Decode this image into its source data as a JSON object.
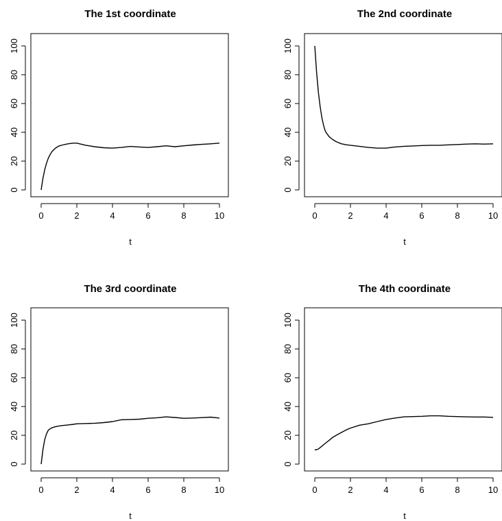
{
  "chart_data": [
    {
      "type": "line",
      "title": "The 1st coordinate",
      "xlabel": "t",
      "ylabel": "",
      "xlim": [
        0,
        10
      ],
      "ylim": [
        0,
        100
      ],
      "xticks": [
        0,
        2,
        4,
        6,
        8,
        10
      ],
      "yticks": [
        0,
        20,
        40,
        60,
        80,
        100
      ],
      "x": [
        0,
        0.1,
        0.2,
        0.3,
        0.4,
        0.5,
        0.6,
        0.8,
        1.0,
        1.2,
        1.5,
        1.8,
        2.0,
        2.5,
        3.0,
        3.5,
        4.0,
        4.5,
        5.0,
        5.5,
        6.0,
        6.5,
        7.0,
        7.5,
        8.0,
        8.5,
        9.0,
        9.5,
        10.0
      ],
      "series": [
        {
          "values": [
            0,
            8,
            14,
            18.5,
            22,
            24.5,
            26.5,
            29,
            30.5,
            31.2,
            32,
            32.5,
            32.5,
            31,
            30,
            29.3,
            29,
            29.5,
            30.2,
            29.8,
            29.5,
            30,
            30.6,
            30,
            30.6,
            31.2,
            31.6,
            32,
            32.5
          ]
        }
      ]
    },
    {
      "type": "line",
      "title": "The 2nd coordinate",
      "xlabel": "t",
      "ylabel": "",
      "xlim": [
        0,
        10
      ],
      "ylim": [
        0,
        100
      ],
      "xticks": [
        0,
        2,
        4,
        6,
        8,
        10
      ],
      "yticks": [
        0,
        20,
        40,
        60,
        80,
        100
      ],
      "x": [
        0,
        0.1,
        0.2,
        0.3,
        0.4,
        0.5,
        0.6,
        0.8,
        1.0,
        1.2,
        1.5,
        1.8,
        2.0,
        2.5,
        3.0,
        3.5,
        4.0,
        4.5,
        5.0,
        5.5,
        6.0,
        6.5,
        7.0,
        7.5,
        8.0,
        8.5,
        9.0,
        9.5,
        10.0
      ],
      "series": [
        {
          "values": [
            100,
            82,
            68,
            58,
            50,
            44.5,
            40.5,
            37,
            35,
            33.5,
            32,
            31.3,
            31,
            30.3,
            29.5,
            29,
            29,
            29.8,
            30.3,
            30.5,
            30.8,
            31,
            31,
            31.3,
            31.5,
            31.8,
            32,
            31.8,
            32
          ]
        }
      ]
    },
    {
      "type": "line",
      "title": "The 3rd coordinate",
      "xlabel": "t",
      "ylabel": "",
      "xlim": [
        0,
        10
      ],
      "ylim": [
        0,
        100
      ],
      "xticks": [
        0,
        2,
        4,
        6,
        8,
        10
      ],
      "yticks": [
        0,
        20,
        40,
        60,
        80,
        100
      ],
      "x": [
        0,
        0.1,
        0.2,
        0.3,
        0.4,
        0.5,
        0.6,
        0.8,
        1.0,
        1.2,
        1.5,
        1.8,
        2.0,
        2.5,
        3.0,
        3.5,
        4.0,
        4.5,
        5.0,
        5.5,
        6.0,
        6.5,
        7.0,
        7.5,
        8.0,
        8.5,
        9.0,
        9.5,
        10.0
      ],
      "series": [
        {
          "values": [
            0,
            10,
            17,
            21,
            23.5,
            24.5,
            25.2,
            26,
            26.5,
            26.8,
            27.2,
            27.6,
            28,
            28.2,
            28.4,
            28.8,
            29.5,
            30.8,
            31,
            31.2,
            31.8,
            32.2,
            32.8,
            32.4,
            31.8,
            32,
            32.3,
            32.6,
            32
          ]
        }
      ]
    },
    {
      "type": "line",
      "title": "The 4th coordinate",
      "xlabel": "t",
      "ylabel": "",
      "xlim": [
        0,
        10
      ],
      "ylim": [
        0,
        100
      ],
      "xticks": [
        0,
        2,
        4,
        6,
        8,
        10
      ],
      "yticks": [
        0,
        20,
        40,
        60,
        80,
        100
      ],
      "x": [
        0,
        0.1,
        0.2,
        0.3,
        0.4,
        0.5,
        0.6,
        0.8,
        1.0,
        1.2,
        1.5,
        1.8,
        2.0,
        2.5,
        3.0,
        3.5,
        4.0,
        4.5,
        5.0,
        5.5,
        6.0,
        6.5,
        7.0,
        7.5,
        8.0,
        8.5,
        9.0,
        9.5,
        10.0
      ],
      "series": [
        {
          "values": [
            10,
            10,
            10.5,
            11.5,
            12.5,
            13.5,
            14.5,
            16.5,
            18.5,
            20,
            22,
            24,
            25,
            27,
            28,
            29.5,
            31,
            32,
            32.8,
            33,
            33.2,
            33.5,
            33.5,
            33.2,
            33,
            32.8,
            32.7,
            32.7,
            32.5
          ]
        }
      ]
    }
  ]
}
